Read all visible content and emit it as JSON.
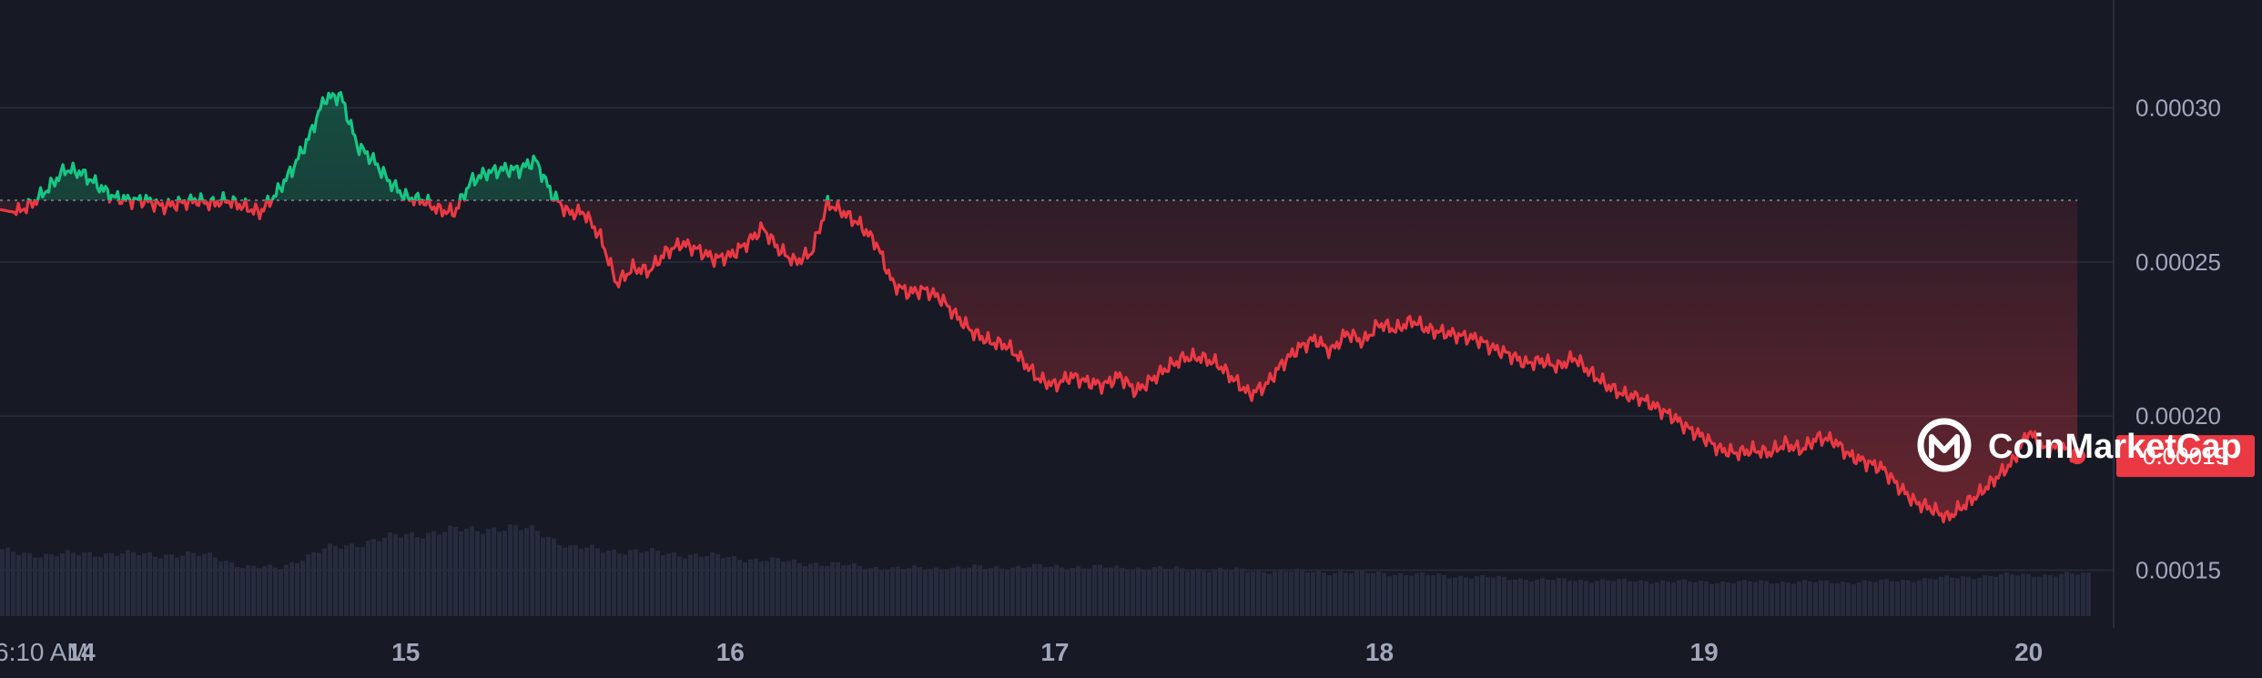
{
  "chart_data": {
    "type": "line",
    "title": "",
    "xlabel": "",
    "ylabel": "",
    "x_tick_labels": [
      "6:10 AM",
      "14",
      "15",
      "16",
      "17",
      "18",
      "19",
      "20"
    ],
    "y_tick_labels": [
      "0.00015",
      "0.00020",
      "0.00025",
      "0.00030"
    ],
    "y_tick_values": [
      0.00015,
      0.0002,
      0.00025,
      0.0003
    ],
    "ylim": [
      0.000115,
      0.000335
    ],
    "xlim": [
      13.75,
      20.2
    ],
    "x_tick_values": [
      13.75,
      14,
      15,
      16,
      17,
      18,
      19,
      20
    ],
    "baseline": 0.00027,
    "current_price_label": "0.00019",
    "current_price": 0.000187,
    "grid": true,
    "colors": {
      "up": "#16c784",
      "down": "#ea3943",
      "background": "#171924",
      "volume": "#262b3d"
    },
    "price": {
      "x": [
        13.75,
        13.8,
        13.85,
        13.9,
        13.95,
        14.0,
        14.05,
        14.1,
        14.15,
        14.2,
        14.25,
        14.3,
        14.35,
        14.4,
        14.45,
        14.5,
        14.55,
        14.6,
        14.65,
        14.7,
        14.75,
        14.8,
        14.85,
        14.9,
        14.95,
        15.0,
        15.05,
        15.1,
        15.15,
        15.2,
        15.25,
        15.3,
        15.35,
        15.4,
        15.45,
        15.5,
        15.55,
        15.6,
        15.65,
        15.7,
        15.75,
        15.8,
        15.85,
        15.9,
        15.95,
        16.0,
        16.05,
        16.1,
        16.15,
        16.2,
        16.25,
        16.3,
        16.35,
        16.4,
        16.45,
        16.5,
        16.55,
        16.6,
        16.65,
        16.7,
        16.75,
        16.8,
        16.85,
        16.9,
        16.95,
        17.0,
        17.05,
        17.1,
        17.15,
        17.2,
        17.25,
        17.3,
        17.35,
        17.4,
        17.45,
        17.5,
        17.55,
        17.6,
        17.65,
        17.7,
        17.75,
        17.8,
        17.85,
        17.9,
        17.95,
        18.0,
        18.05,
        18.1,
        18.15,
        18.2,
        18.25,
        18.3,
        18.35,
        18.4,
        18.45,
        18.5,
        18.55,
        18.6,
        18.65,
        18.7,
        18.75,
        18.8,
        18.85,
        18.9,
        18.95,
        19.0,
        19.05,
        19.1,
        19.15,
        19.2,
        19.25,
        19.3,
        19.35,
        19.4,
        19.45,
        19.5,
        19.55,
        19.6,
        19.65,
        19.7,
        19.75,
        19.8,
        19.85,
        19.9,
        19.95,
        20.0,
        20.05,
        20.1,
        20.15
      ],
      "y": [
        0.000267,
        0.000266,
        0.000269,
        0.000274,
        0.00028,
        0.000279,
        0.000275,
        0.000271,
        0.00027,
        0.00027,
        0.000268,
        0.000269,
        0.00027,
        0.000269,
        0.00027,
        0.000268,
        0.000266,
        0.000272,
        0.00028,
        0.00029,
        0.000303,
        0.000304,
        0.000288,
        0.000283,
        0.000276,
        0.000271,
        0.00027,
        0.000267,
        0.000266,
        0.000276,
        0.000279,
        0.00028,
        0.00028,
        0.000283,
        0.000272,
        0.000266,
        0.000266,
        0.000258,
        0.000243,
        0.000248,
        0.000247,
        0.000253,
        0.000256,
        0.000254,
        0.000251,
        0.000252,
        0.000256,
        0.000261,
        0.000254,
        0.00025,
        0.000253,
        0.000269,
        0.000266,
        0.000262,
        0.000256,
        0.000243,
        0.00024,
        0.000241,
        0.000238,
        0.000232,
        0.000227,
        0.000224,
        0.000223,
        0.000218,
        0.000212,
        0.00021,
        0.000213,
        0.000211,
        0.00021,
        0.000213,
        0.000208,
        0.000212,
        0.000216,
        0.000219,
        0.000219,
        0.000217,
        0.000212,
        0.000207,
        0.00021,
        0.000217,
        0.000222,
        0.000225,
        0.000221,
        0.000227,
        0.000224,
        0.00023,
        0.000228,
        0.000231,
        0.000228,
        0.000227,
        0.000226,
        0.000225,
        0.000222,
        0.00022,
        0.000217,
        0.000218,
        0.000216,
        0.000219,
        0.000214,
        0.00021,
        0.000207,
        0.000206,
        0.000203,
        0.0002,
        0.000196,
        0.000193,
        0.000189,
        0.000188,
        0.000189,
        0.000188,
        0.000191,
        0.000189,
        0.000193,
        0.000192,
        0.000187,
        0.000185,
        0.000183,
        0.000177,
        0.000172,
        0.00017,
        0.000167,
        0.000171,
        0.000175,
        0.00018,
        0.000185,
        0.000195,
        0.000189,
        0.00019,
        0.000187
      ]
    },
    "volume": {
      "x": [
        13.75,
        13.9,
        14.0,
        14.4,
        14.5,
        14.6,
        14.75,
        15.0,
        15.25,
        15.4,
        15.5,
        15.8,
        16.0,
        16.5,
        17.0,
        17.5,
        18.0,
        18.5,
        19.0,
        19.5,
        19.9,
        20.15
      ],
      "y": [
        0.59,
        0.55,
        0.57,
        0.55,
        0.44,
        0.44,
        0.61,
        0.74,
        0.8,
        0.78,
        0.62,
        0.57,
        0.53,
        0.43,
        0.45,
        0.42,
        0.39,
        0.33,
        0.31,
        0.31,
        0.37,
        0.38
      ]
    }
  },
  "brand": {
    "name": "CoinMarketCap",
    "icon": "coinmarketcap-logo-icon"
  }
}
